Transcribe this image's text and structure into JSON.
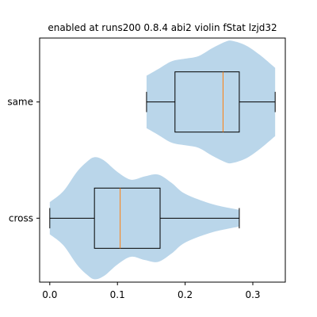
{
  "chart_data": {
    "type": "violin",
    "title": "enabled at runs200 0.8.4 abi2 violin fStat lzjd32",
    "xlabel": "",
    "ylabel": "",
    "orientation": "horizontal",
    "xlim": [
      -0.015,
      0.348
    ],
    "xticks": [
      0.0,
      0.1,
      0.2,
      0.3
    ],
    "xtick_labels": [
      "0.0",
      "0.1",
      "0.2",
      "0.3"
    ],
    "categories": [
      "cross",
      "same"
    ],
    "violins": [
      {
        "category": "cross",
        "box": {
          "whisker_low": 0.0,
          "q1": 0.066,
          "median": 0.104,
          "q3": 0.163,
          "whisker_high": 0.28
        },
        "density": [
          [
            0.0,
            0.25
          ],
          [
            0.02,
            0.42
          ],
          [
            0.04,
            0.72
          ],
          [
            0.055,
            0.88
          ],
          [
            0.066,
            0.95
          ],
          [
            0.08,
            0.9
          ],
          [
            0.1,
            0.72
          ],
          [
            0.12,
            0.6
          ],
          [
            0.14,
            0.65
          ],
          [
            0.16,
            0.68
          ],
          [
            0.18,
            0.55
          ],
          [
            0.2,
            0.38
          ],
          [
            0.24,
            0.22
          ],
          [
            0.28,
            0.13
          ]
        ]
      },
      {
        "category": "same",
        "box": {
          "whisker_low": 0.143,
          "q1": 0.185,
          "median": 0.256,
          "q3": 0.28,
          "whisker_high": 0.333
        },
        "density": [
          [
            0.143,
            0.4
          ],
          [
            0.16,
            0.5
          ],
          [
            0.18,
            0.62
          ],
          [
            0.2,
            0.66
          ],
          [
            0.22,
            0.7
          ],
          [
            0.24,
            0.82
          ],
          [
            0.26,
            0.92
          ],
          [
            0.27,
            0.93
          ],
          [
            0.29,
            0.86
          ],
          [
            0.31,
            0.72
          ],
          [
            0.333,
            0.52
          ]
        ]
      }
    ],
    "colors": {
      "violin_fill": "#bad6ea",
      "box_edge": "#000000",
      "median": "#ff7f0e"
    }
  }
}
